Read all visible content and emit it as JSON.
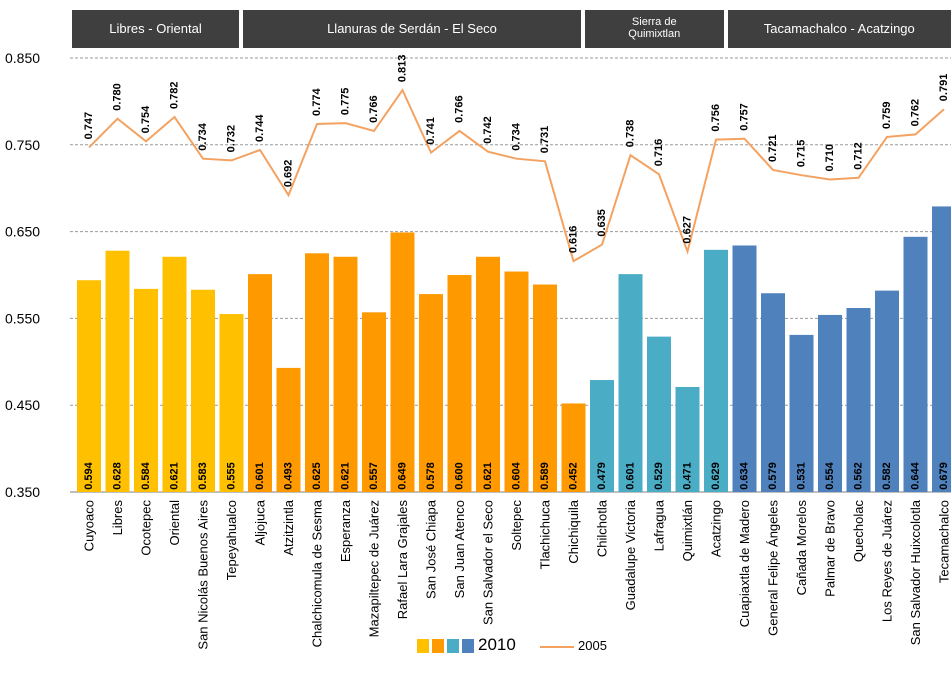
{
  "chart_data": {
    "type": "bar",
    "title": "",
    "xlabel": "",
    "ylabel": "",
    "ylim": [
      0.35,
      0.85
    ],
    "yticks": [
      0.85,
      0.75,
      0.65,
      0.55,
      0.45,
      0.35
    ],
    "ytick_labels": [
      "0.850",
      "0.750",
      "0.650",
      "0.550",
      "0.450",
      "0.350"
    ],
    "grid": true,
    "legend_position": "bottom",
    "regions": [
      {
        "label": "Libres - Oriental",
        "start": 0,
        "end": 5,
        "color": "#ffc000"
      },
      {
        "label": "Llanuras de Serdán - El Seco",
        "start": 6,
        "end": 17,
        "color": "#ff9900"
      },
      {
        "label": "Sierra de\nQuimixtlan",
        "start": 18,
        "end": 22,
        "color": "#4bacc6"
      },
      {
        "label": "Tacamachalco - Acatzingo",
        "start": 23,
        "end": 32,
        "color": "#4f81bd"
      }
    ],
    "categories": [
      "Cuyoaco",
      "Libres",
      "Ocotepec",
      "Oriental",
      "San Nicolás Buenos Aires",
      "Tepeyahualco",
      "Aljojuca",
      "Atzitzintla",
      "Chalchicomula de Sesma",
      "Esperanza",
      "Mazapiltepec de Juárez",
      "Rafael Lara Grajales",
      "San José Chiapa",
      "San Juan Atenco",
      "San Salvador el Seco",
      "Soltepec",
      "Tlachichuca",
      "Chichiquila",
      "Chilchotla",
      "Guadalupe Victoria",
      "Lafragua",
      "Quimixtlán",
      "Acatzingo",
      "Cuapiaxtla de Madero",
      "General Felipe Ángeles",
      "Cañada Morelos",
      "Palmar de Bravo",
      "Quecholac",
      "Los Reyes de Juárez",
      "San Salvador Huixcolotla",
      "Tecamachalco"
    ],
    "series": [
      {
        "name": "2010",
        "type": "bar",
        "values": [
          0.594,
          0.628,
          0.584,
          0.621,
          0.583,
          0.555,
          0.601,
          0.493,
          0.625,
          0.621,
          0.557,
          0.649,
          0.578,
          0.6,
          0.621,
          0.604,
          0.589,
          0.452,
          0.479,
          0.601,
          0.529,
          0.471,
          0.629,
          0.634,
          0.579,
          0.531,
          0.554,
          0.562,
          0.582,
          0.644,
          0.679
        ],
        "labels": [
          "0.594",
          "0.628",
          "0.584",
          "0.621",
          "0.583",
          "0.555",
          "0.601",
          "0.493",
          "0.625",
          "0.621",
          "0.557",
          "0.649",
          "0.578",
          "0.600",
          "0.621",
          "0.604",
          "0.589",
          "0.452",
          "0.479",
          "0.601",
          "0.529",
          "0.471",
          "0.629",
          "0.634",
          "0.579",
          "0.531",
          "0.554",
          "0.562",
          "0.582",
          "0.644",
          "0.679"
        ]
      },
      {
        "name": "2005",
        "type": "line",
        "color": "#f4a261",
        "values": [
          0.747,
          0.78,
          0.754,
          0.782,
          0.734,
          0.732,
          0.744,
          0.692,
          0.774,
          0.775,
          0.766,
          0.813,
          0.741,
          0.766,
          0.742,
          0.734,
          0.731,
          0.616,
          0.635,
          0.738,
          0.716,
          0.627,
          0.756,
          0.757,
          0.721,
          0.715,
          0.71,
          0.712,
          0.759,
          0.762,
          0.791
        ],
        "labels": [
          "0.747",
          "0.780",
          "0.754",
          "0.782",
          "0.734",
          "0.732",
          "0.744",
          "0.692",
          "0.774",
          "0.775",
          "0.766",
          "0.813",
          "0.741",
          "0.766",
          "0.742",
          "0.734",
          "0.731",
          "0.616",
          "0.635",
          "0.738",
          "0.716",
          "0.627",
          "0.756",
          "0.757",
          "0.721",
          "0.715",
          "0.710",
          "0.712",
          "0.759",
          "0.762",
          "0.791"
        ]
      }
    ],
    "legend": {
      "bar_label": "2010",
      "line_label": "2005"
    }
  }
}
